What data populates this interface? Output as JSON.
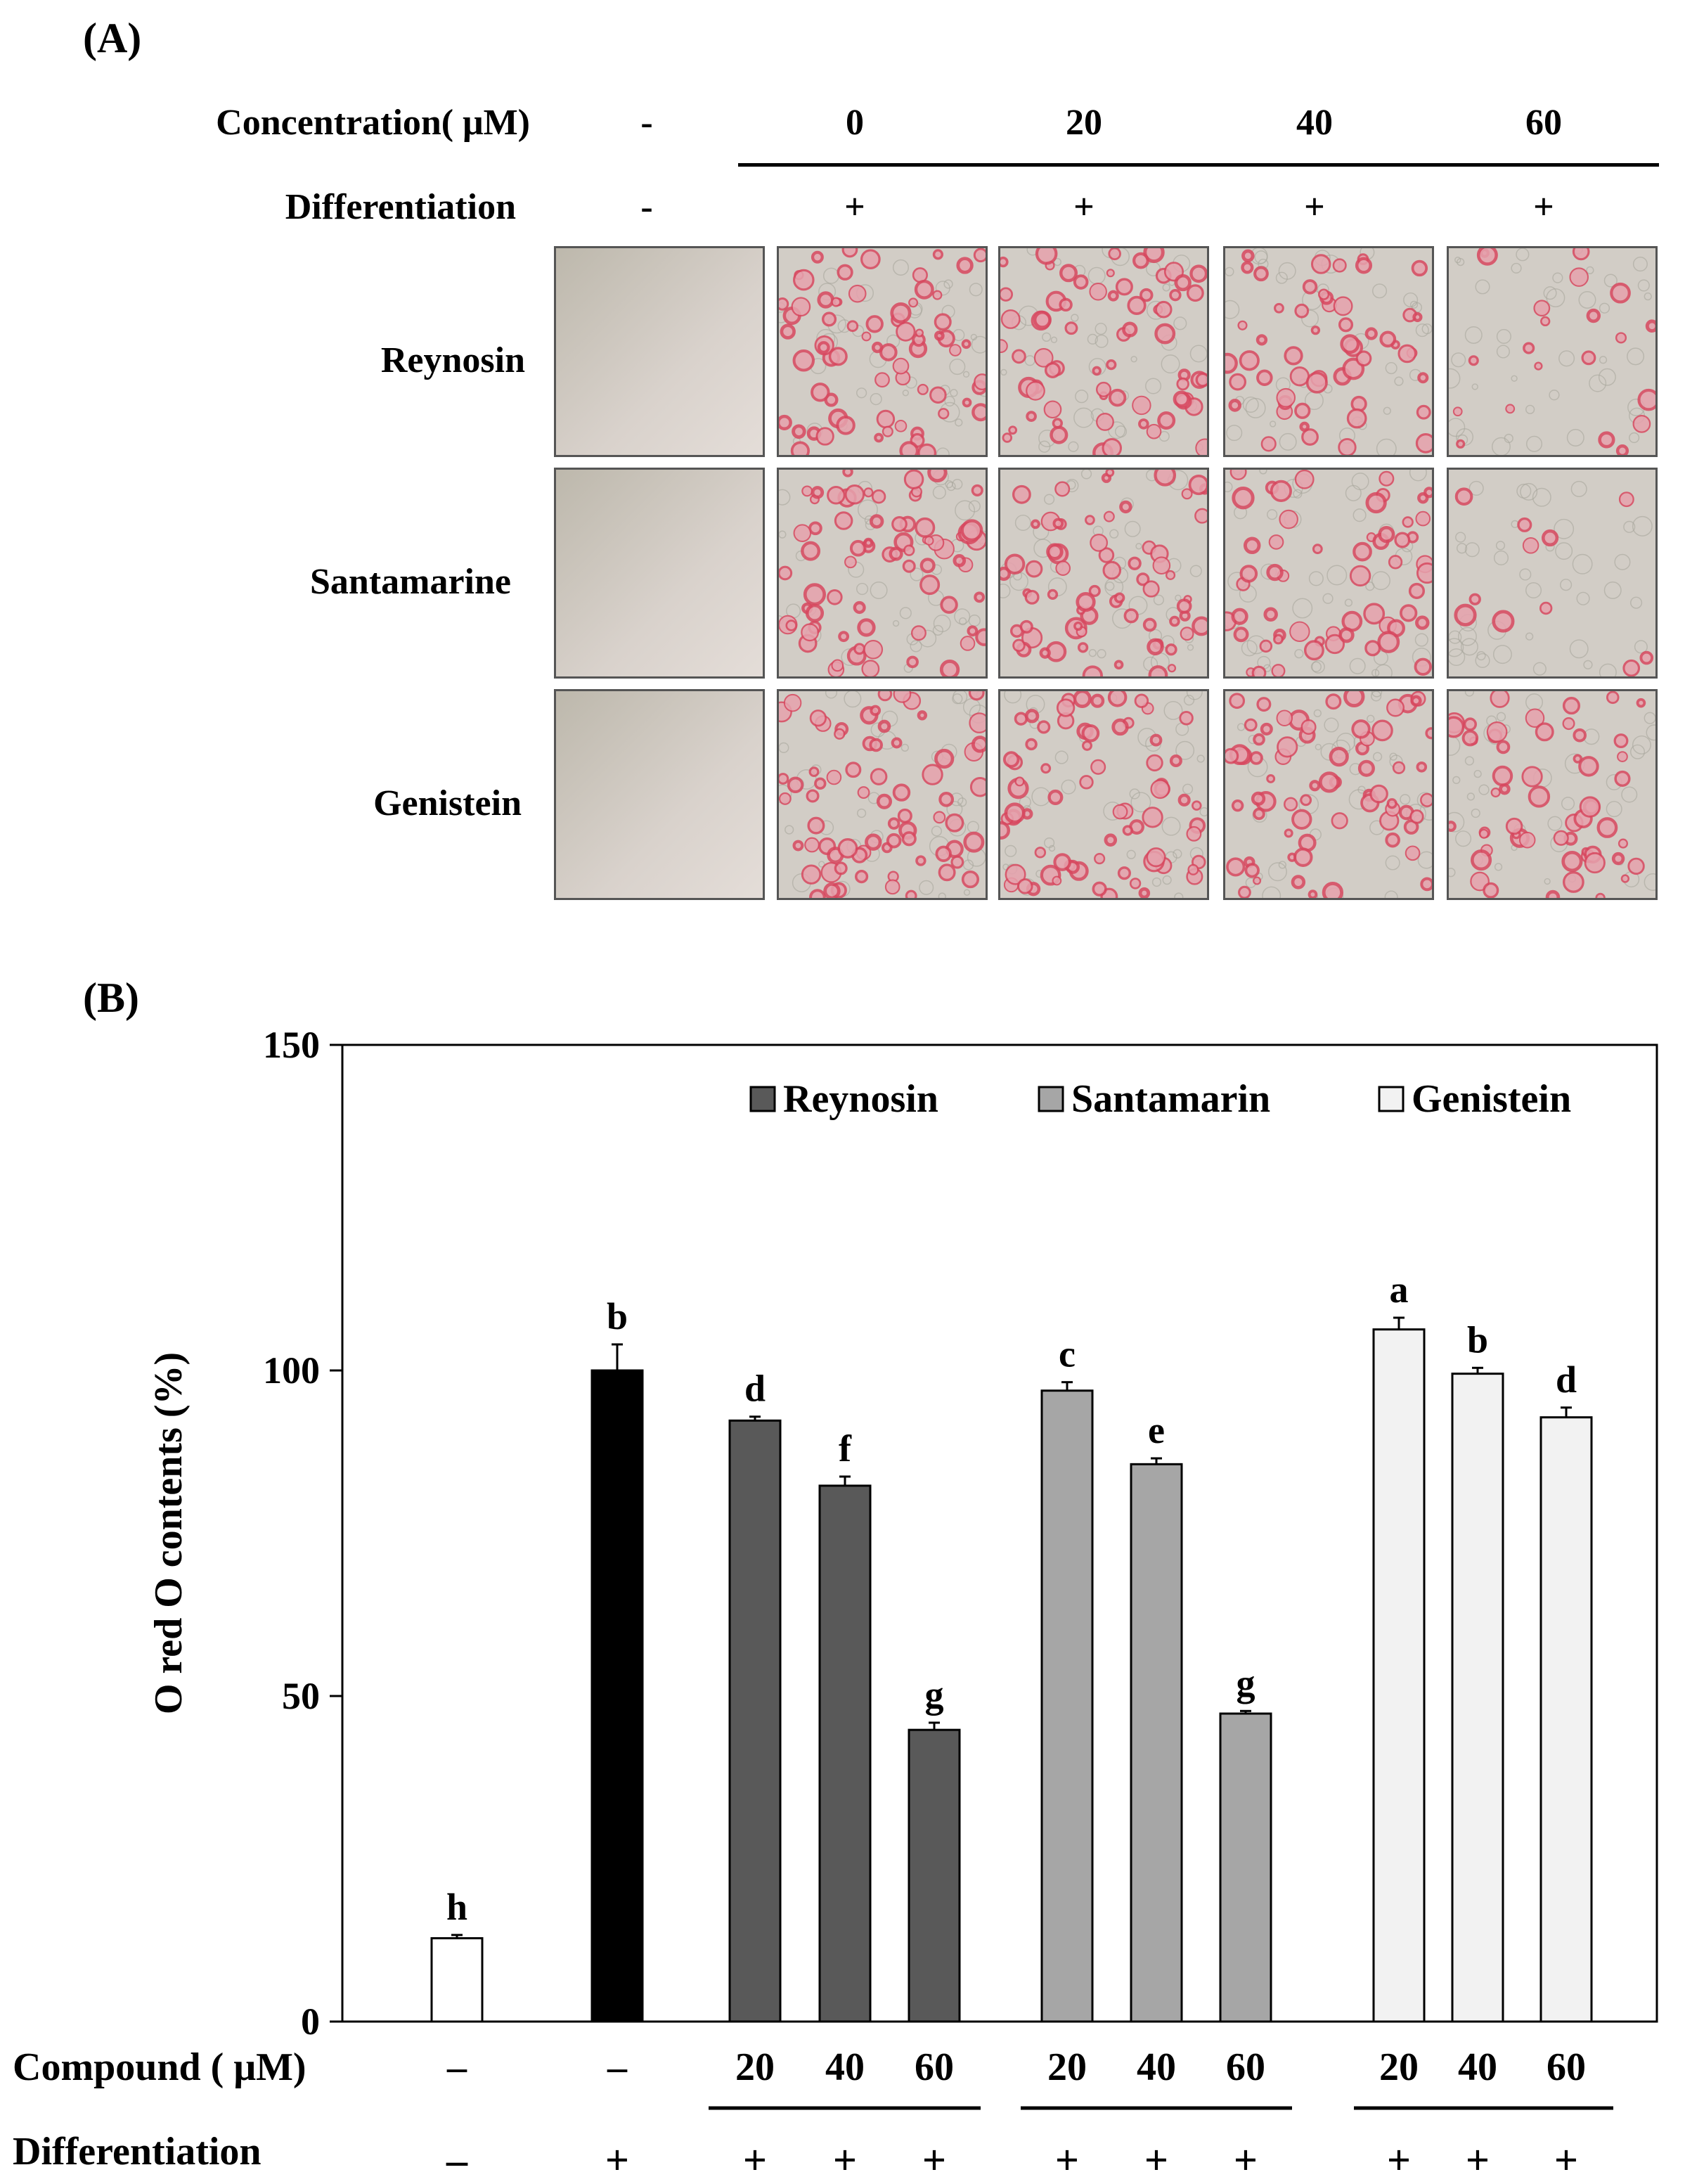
{
  "panelA": {
    "label": "(A)",
    "concentration_label": "Concentration( μM)",
    "differentiation_label": "Differentiation",
    "columns": [
      {
        "conc": "-",
        "diff": "-",
        "stain": 0
      },
      {
        "conc": "0",
        "diff": "+",
        "stain": 1.0
      },
      {
        "conc": "20",
        "diff": "+",
        "stain": 0.95
      },
      {
        "conc": "40",
        "diff": "+",
        "stain": 0.75
      },
      {
        "conc": "60",
        "diff": "+",
        "stain": 0.35
      }
    ],
    "rows": [
      {
        "name": "Reynosin",
        "stain": [
          0,
          1.0,
          0.95,
          0.75,
          0.3
        ]
      },
      {
        "name": "Santamarine",
        "stain": [
          0,
          1.0,
          0.95,
          0.8,
          0.15
        ]
      },
      {
        "name": "Genistein",
        "stain": [
          0,
          1.0,
          1.0,
          0.95,
          0.8
        ]
      }
    ]
  },
  "panelB": {
    "label": "(B)",
    "compound_label": "Compound ( μM)",
    "differentiation_label": "Differentiation"
  },
  "chart_data": {
    "type": "bar",
    "ylabel": "O red O contents (%)",
    "ylim": [
      0,
      150
    ],
    "yticks": [
      0,
      50,
      100,
      150
    ],
    "legend_position": "top-right",
    "legend": [
      {
        "name": "Reynosin",
        "color": "#595959"
      },
      {
        "name": "Santamarin",
        "color": "#a6a6a6"
      },
      {
        "name": "Genistein",
        "color": "#f2f2f2"
      }
    ],
    "bars": [
      {
        "compound": "–",
        "diff": "–",
        "value": 12.8,
        "error": 0.5,
        "letter": "h",
        "color": "#ffffff",
        "group": "control"
      },
      {
        "compound": "–",
        "diff": "+",
        "value": 100,
        "error": 4.0,
        "letter": "b",
        "color": "#000000",
        "group": "control"
      },
      {
        "compound": "20",
        "diff": "+",
        "value": 92.3,
        "error": 0.6,
        "letter": "d",
        "color": "#595959",
        "group": "Reynosin"
      },
      {
        "compound": "40",
        "diff": "+",
        "value": 82.3,
        "error": 1.4,
        "letter": "f",
        "color": "#595959",
        "group": "Reynosin"
      },
      {
        "compound": "60",
        "diff": "+",
        "value": 44.8,
        "error": 1.1,
        "letter": "g",
        "color": "#595959",
        "group": "Reynosin"
      },
      {
        "compound": "20",
        "diff": "+",
        "value": 96.9,
        "error": 1.3,
        "letter": "c",
        "color": "#a6a6a6",
        "group": "Santamarin"
      },
      {
        "compound": "40",
        "diff": "+",
        "value": 85.6,
        "error": 0.9,
        "letter": "e",
        "color": "#a6a6a6",
        "group": "Santamarin"
      },
      {
        "compound": "60",
        "diff": "+",
        "value": 47.3,
        "error": 0.4,
        "letter": "g",
        "color": "#a6a6a6",
        "group": "Santamarin"
      },
      {
        "compound": "20",
        "diff": "+",
        "value": 106.3,
        "error": 1.8,
        "letter": "a",
        "color": "#f2f2f2",
        "group": "Genistein"
      },
      {
        "compound": "40",
        "diff": "+",
        "value": 99.5,
        "error": 0.9,
        "letter": "b",
        "color": "#f2f2f2",
        "group": "Genistein"
      },
      {
        "compound": "60",
        "diff": "+",
        "value": 92.8,
        "error": 1.5,
        "letter": "d",
        "color": "#f2f2f2",
        "group": "Genistein"
      }
    ]
  }
}
